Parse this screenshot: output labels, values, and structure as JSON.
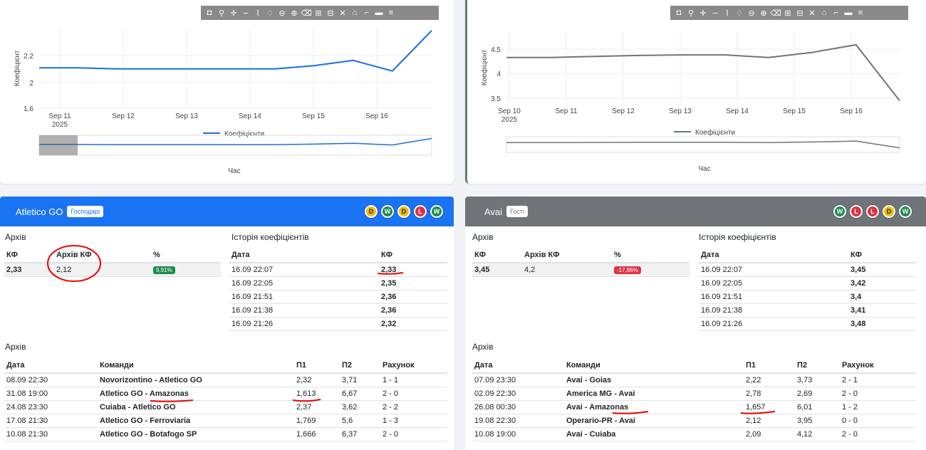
{
  "left_chart": {
    "ylabel": "Коефіцієнт",
    "y_ticks": [
      "2.2",
      "2",
      "1.6"
    ],
    "x_ticks": [
      "Sep 11",
      "Sep 12",
      "Sep 13",
      "Sep 14",
      "Sep 15",
      "Sep 16"
    ],
    "x_year": "2025",
    "legend": "Коефіцієнти",
    "xlabel": "Час",
    "line_color": "#1a6fe0"
  },
  "right_chart": {
    "ylabel": "Коефіцієнт",
    "y_ticks": [
      "4.5",
      "4",
      "3.5"
    ],
    "x_ticks": [
      "Sep 10",
      "Sep 11",
      "Sep 12",
      "Sep 13",
      "Sep 14",
      "Sep 15",
      "Sep 16"
    ],
    "x_year": "2025",
    "legend": "Коефіцієнти",
    "xlabel": "Час",
    "line_color": "#6c757d"
  },
  "chart_data": [
    {
      "type": "line",
      "title": "",
      "xlabel": "Час",
      "ylabel": "Коефіцієнт",
      "series": [
        {
          "name": "Коефіцієнти",
          "x": [
            "Sep 10",
            "Sep 11",
            "Sep 12",
            "Sep 13",
            "Sep 14",
            "Sep 15",
            "Sep 15.5",
            "Sep 16",
            "Sep 16.5",
            "Sep 16.8",
            "Sep 16.9"
          ],
          "values": [
            1.98,
            1.98,
            1.97,
            1.97,
            1.97,
            1.97,
            1.97,
            2.0,
            2.05,
            1.95,
            2.33
          ]
        }
      ],
      "ylim": [
        1.6,
        2.35
      ]
    },
    {
      "type": "line",
      "title": "",
      "xlabel": "Час",
      "ylabel": "Коефіцієнт",
      "series": [
        {
          "name": "Коефіцієнти",
          "x": [
            "Sep 10",
            "Sep 11",
            "Sep 12",
            "Sep 13",
            "Sep 14",
            "Sep 15",
            "Sep 16",
            "Sep 16.5",
            "Sep 16.8",
            "Sep 16.9"
          ],
          "values": [
            4.3,
            4.3,
            4.32,
            4.34,
            4.35,
            4.35,
            4.3,
            4.4,
            4.55,
            3.45
          ]
        }
      ],
      "ylim": [
        3.4,
        4.8
      ]
    }
  ],
  "home": {
    "team": "Atletico GO",
    "role": "Господарі",
    "form": [
      "D",
      "W",
      "D",
      "L",
      "W"
    ],
    "archive_title": "Архів",
    "kf_headers": [
      "КФ",
      "Архів КФ",
      "%"
    ],
    "kf": "2,33",
    "archive_kf": "2,12",
    "pct": "9,91%",
    "history_title": "Історія коефіцієнтів",
    "history_headers": [
      "Дата",
      "КФ"
    ],
    "history": [
      {
        "date": "16.09 22:07",
        "kf": "2,33"
      },
      {
        "date": "16.09 22:05",
        "kf": "2,35"
      },
      {
        "date": "16.09 21:51",
        "kf": "2,36"
      },
      {
        "date": "16.09 21:38",
        "kf": "2,36"
      },
      {
        "date": "16.09 21:26",
        "kf": "2,32"
      }
    ],
    "matches_title": "Архів",
    "match_headers": [
      "Дата",
      "Команди",
      "П1",
      "П2",
      "Рахунок"
    ],
    "matches": [
      {
        "date": "08.09 22:30",
        "teams": "Novorizontino - Atletico GO",
        "p1": "2,32",
        "p2": "3,71",
        "score": "1 - 1"
      },
      {
        "date": "31.08 19:00",
        "teams": "Atletico GO - Amazonas",
        "p1": "1,613",
        "p2": "6,67",
        "score": "2 - 0"
      },
      {
        "date": "24.08 23:30",
        "teams": "Cuiaba - Atletico GO",
        "p1": "2,37",
        "p2": "3,62",
        "score": "2 - 2"
      },
      {
        "date": "17.08 21:30",
        "teams": "Atletico GO - Ferroviaria",
        "p1": "1,769",
        "p2": "5,6",
        "score": "1 - 3"
      },
      {
        "date": "10.08 21:30",
        "teams": "Atletico GO - Botafogo SP",
        "p1": "1,666",
        "p2": "6,37",
        "score": "2 - 0"
      }
    ]
  },
  "away": {
    "team": "Avai",
    "role": "Гості",
    "form": [
      "W",
      "L",
      "L",
      "D",
      "W"
    ],
    "archive_title": "Архів",
    "kf_headers": [
      "КФ",
      "Архів КФ",
      "%"
    ],
    "kf": "3,45",
    "archive_kf": "4,2",
    "pct": "-17,86%",
    "history_title": "Історія коефіцієнтів",
    "history_headers": [
      "Дата",
      "КФ"
    ],
    "history": [
      {
        "date": "16.09 22:07",
        "kf": "3,45"
      },
      {
        "date": "16.09 22:05",
        "kf": "3,42"
      },
      {
        "date": "16.09 21:51",
        "kf": "3,4"
      },
      {
        "date": "16.09 21:38",
        "kf": "3,41"
      },
      {
        "date": "16.09 21:26",
        "kf": "3,48"
      }
    ],
    "matches_title": "Архів",
    "match_headers": [
      "Дата",
      "Команди",
      "П1",
      "П2",
      "Рахунок"
    ],
    "matches": [
      {
        "date": "07.09 23:30",
        "teams": "Avai - Goias",
        "p1": "2,22",
        "p2": "3,73",
        "score": "2 - 1"
      },
      {
        "date": "02.09 22:30",
        "teams": "America MG - Avai",
        "p1": "2,78",
        "p2": "2,69",
        "score": "2 - 0"
      },
      {
        "date": "26.08 00:30",
        "teams": "Avai - Amazonas",
        "p1": "1,657",
        "p2": "6,01",
        "score": "1 - 2"
      },
      {
        "date": "19.08 22:30",
        "teams": "Operario-PR - Avai",
        "p1": "2,12",
        "p2": "3,95",
        "score": "0 - 0"
      },
      {
        "date": "10.08 19:00",
        "teams": "Avai - Cuiaba",
        "p1": "2,09",
        "p2": "4,12",
        "score": "2 - 0"
      }
    ]
  }
}
